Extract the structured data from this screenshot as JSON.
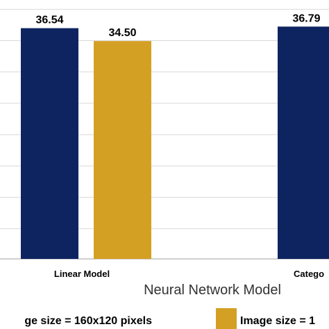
{
  "chart_data": {
    "type": "bar",
    "categories": [
      "Linear Model",
      "Catego"
    ],
    "series": [
      {
        "name": "ge size = 160x120 pixels",
        "values": [
          36.54,
          36.79
        ],
        "color": "#0d2461"
      },
      {
        "name": "Image size = 1",
        "values": [
          34.5,
          null
        ],
        "color": "#d4a024"
      }
    ],
    "data_labels": [
      [
        "36.54",
        "36.79"
      ],
      [
        "34.50",
        ""
      ]
    ],
    "xlabel": "Neural Network Model",
    "ylabel": "",
    "ylim": [
      0,
      41
    ],
    "grid": true,
    "legend": "bottom"
  },
  "colors": {
    "gridline": "#d9d9d9",
    "axis": "#bfbfbf"
  }
}
